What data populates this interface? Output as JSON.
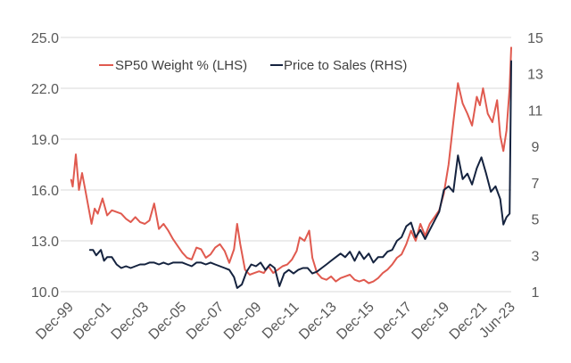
{
  "chart_data": {
    "type": "line",
    "title": "",
    "xlabel": "",
    "ylabel_left": "",
    "ylabel_right": "",
    "x_tick_labels": [
      "Dec-99",
      "Dec-01",
      "Dec-03",
      "Dec-05",
      "Dec-07",
      "Dec-09",
      "Dec-11",
      "Dec-13",
      "Dec-15",
      "Dec-17",
      "Dec-19",
      "Dec-21",
      "Jun-23"
    ],
    "x_tick_dates": [
      "1999-12",
      "2001-12",
      "2003-12",
      "2005-12",
      "2007-12",
      "2009-12",
      "2011-12",
      "2013-12",
      "2015-12",
      "2017-12",
      "2019-12",
      "2021-12",
      "2023-06"
    ],
    "xlim": [
      "1999-12",
      "2023-06"
    ],
    "y_left": {
      "ticks": [
        "10.0",
        "13.0",
        "16.0",
        "19.0",
        "22.0",
        "25.0"
      ],
      "lim": [
        10,
        25
      ]
    },
    "y_right": {
      "ticks": [
        "1",
        "3",
        "5",
        "7",
        "9",
        "11",
        "13",
        "15"
      ],
      "lim": [
        1,
        15
      ]
    },
    "grid": "horizontal",
    "legend_position": "top",
    "series": [
      {
        "name": "SP50 Weight % (LHS)",
        "axis": "left",
        "color": "#e05a4f",
        "points": [
          [
            "2000-01",
            16.6
          ],
          [
            "2000-02",
            16.2
          ],
          [
            "2000-04",
            18.1
          ],
          [
            "2000-06",
            16.0
          ],
          [
            "2000-08",
            17.0
          ],
          [
            "2000-10",
            16.0
          ],
          [
            "2000-12",
            15.0
          ],
          [
            "2001-02",
            14.0
          ],
          [
            "2001-04",
            14.9
          ],
          [
            "2001-06",
            14.6
          ],
          [
            "2001-09",
            15.5
          ],
          [
            "2001-12",
            14.5
          ],
          [
            "2002-03",
            14.8
          ],
          [
            "2002-06",
            14.7
          ],
          [
            "2002-09",
            14.6
          ],
          [
            "2002-12",
            14.3
          ],
          [
            "2003-03",
            14.1
          ],
          [
            "2003-06",
            14.4
          ],
          [
            "2003-09",
            14.1
          ],
          [
            "2003-12",
            14.0
          ],
          [
            "2004-03",
            14.2
          ],
          [
            "2004-06",
            15.2
          ],
          [
            "2004-09",
            13.7
          ],
          [
            "2004-12",
            14.0
          ],
          [
            "2005-03",
            13.6
          ],
          [
            "2005-06",
            13.1
          ],
          [
            "2005-09",
            12.7
          ],
          [
            "2005-12",
            12.3
          ],
          [
            "2006-03",
            12.0
          ],
          [
            "2006-06",
            11.9
          ],
          [
            "2006-09",
            12.6
          ],
          [
            "2006-12",
            12.5
          ],
          [
            "2007-03",
            12.0
          ],
          [
            "2007-06",
            12.2
          ],
          [
            "2007-09",
            12.6
          ],
          [
            "2007-12",
            12.8
          ],
          [
            "2008-03",
            12.4
          ],
          [
            "2008-06",
            11.7
          ],
          [
            "2008-09",
            12.5
          ],
          [
            "2008-11",
            14.0
          ],
          [
            "2009-01",
            12.8
          ],
          [
            "2009-04",
            11.3
          ],
          [
            "2009-07",
            11.0
          ],
          [
            "2009-10",
            11.1
          ],
          [
            "2010-01",
            11.2
          ],
          [
            "2010-04",
            11.1
          ],
          [
            "2010-07",
            11.5
          ],
          [
            "2010-10",
            11.1
          ],
          [
            "2011-01",
            11.3
          ],
          [
            "2011-04",
            11.5
          ],
          [
            "2011-07",
            11.6
          ],
          [
            "2011-10",
            11.9
          ],
          [
            "2012-01",
            12.4
          ],
          [
            "2012-03",
            13.2
          ],
          [
            "2012-06",
            13.0
          ],
          [
            "2012-09",
            13.6
          ],
          [
            "2012-11",
            12.0
          ],
          [
            "2013-02",
            11.1
          ],
          [
            "2013-05",
            10.8
          ],
          [
            "2013-08",
            10.7
          ],
          [
            "2013-11",
            10.9
          ],
          [
            "2014-02",
            10.6
          ],
          [
            "2014-05",
            10.8
          ],
          [
            "2014-08",
            10.9
          ],
          [
            "2014-11",
            11.0
          ],
          [
            "2015-02",
            10.7
          ],
          [
            "2015-05",
            10.6
          ],
          [
            "2015-08",
            10.7
          ],
          [
            "2015-11",
            10.5
          ],
          [
            "2016-02",
            10.6
          ],
          [
            "2016-05",
            10.8
          ],
          [
            "2016-08",
            11.1
          ],
          [
            "2016-11",
            11.3
          ],
          [
            "2017-02",
            11.6
          ],
          [
            "2017-05",
            12.0
          ],
          [
            "2017-08",
            12.2
          ],
          [
            "2017-11",
            12.8
          ],
          [
            "2018-02",
            13.6
          ],
          [
            "2018-05",
            13.0
          ],
          [
            "2018-08",
            14.0
          ],
          [
            "2018-11",
            13.3
          ],
          [
            "2019-02",
            14.0
          ],
          [
            "2019-05",
            14.4
          ],
          [
            "2019-08",
            14.8
          ],
          [
            "2019-11",
            15.8
          ],
          [
            "2020-02",
            17.5
          ],
          [
            "2020-05",
            20.0
          ],
          [
            "2020-08",
            22.3
          ],
          [
            "2020-11",
            21.1
          ],
          [
            "2021-02",
            20.5
          ],
          [
            "2021-05",
            19.8
          ],
          [
            "2021-08",
            21.5
          ],
          [
            "2021-10",
            21.0
          ],
          [
            "2021-12",
            22.0
          ],
          [
            "2022-03",
            20.5
          ],
          [
            "2022-06",
            20.0
          ],
          [
            "2022-09",
            21.3
          ],
          [
            "2022-11",
            19.2
          ],
          [
            "2023-01",
            18.3
          ],
          [
            "2023-03",
            19.5
          ],
          [
            "2023-05",
            22.0
          ],
          [
            "2023-06",
            24.4
          ]
        ]
      },
      {
        "name": "Price to Sales (RHS)",
        "axis": "right",
        "color": "#15233f",
        "points": [
          [
            "2001-01",
            3.3
          ],
          [
            "2001-03",
            3.3
          ],
          [
            "2001-05",
            3.0
          ],
          [
            "2001-08",
            3.3
          ],
          [
            "2001-10",
            2.7
          ],
          [
            "2001-12",
            2.9
          ],
          [
            "2002-03",
            2.9
          ],
          [
            "2002-06",
            2.5
          ],
          [
            "2002-09",
            2.3
          ],
          [
            "2002-12",
            2.4
          ],
          [
            "2003-03",
            2.3
          ],
          [
            "2003-06",
            2.4
          ],
          [
            "2003-09",
            2.5
          ],
          [
            "2003-12",
            2.5
          ],
          [
            "2004-03",
            2.6
          ],
          [
            "2004-06",
            2.6
          ],
          [
            "2004-09",
            2.5
          ],
          [
            "2004-12",
            2.6
          ],
          [
            "2005-03",
            2.5
          ],
          [
            "2005-06",
            2.6
          ],
          [
            "2005-09",
            2.6
          ],
          [
            "2005-12",
            2.6
          ],
          [
            "2006-03",
            2.5
          ],
          [
            "2006-06",
            2.4
          ],
          [
            "2006-09",
            2.6
          ],
          [
            "2006-12",
            2.6
          ],
          [
            "2007-03",
            2.5
          ],
          [
            "2007-06",
            2.6
          ],
          [
            "2007-09",
            2.5
          ],
          [
            "2007-12",
            2.4
          ],
          [
            "2008-03",
            2.3
          ],
          [
            "2008-06",
            2.2
          ],
          [
            "2008-09",
            1.8
          ],
          [
            "2008-11",
            1.2
          ],
          [
            "2009-02",
            1.4
          ],
          [
            "2009-05",
            2.1
          ],
          [
            "2009-08",
            2.5
          ],
          [
            "2009-11",
            2.4
          ],
          [
            "2010-02",
            2.6
          ],
          [
            "2010-05",
            2.2
          ],
          [
            "2010-08",
            2.5
          ],
          [
            "2010-11",
            2.3
          ],
          [
            "2011-02",
            1.3
          ],
          [
            "2011-05",
            2.0
          ],
          [
            "2011-08",
            2.2
          ],
          [
            "2011-11",
            2.0
          ],
          [
            "2012-02",
            2.2
          ],
          [
            "2012-05",
            2.3
          ],
          [
            "2012-08",
            2.3
          ],
          [
            "2012-11",
            2.0
          ],
          [
            "2013-02",
            2.1
          ],
          [
            "2013-05",
            2.3
          ],
          [
            "2013-08",
            2.5
          ],
          [
            "2013-11",
            2.7
          ],
          [
            "2014-02",
            2.9
          ],
          [
            "2014-05",
            3.1
          ],
          [
            "2014-08",
            2.9
          ],
          [
            "2014-11",
            3.2
          ],
          [
            "2015-02",
            2.7
          ],
          [
            "2015-05",
            3.2
          ],
          [
            "2015-08",
            2.8
          ],
          [
            "2015-11",
            3.1
          ],
          [
            "2016-02",
            2.6
          ],
          [
            "2016-05",
            2.9
          ],
          [
            "2016-08",
            2.9
          ],
          [
            "2016-11",
            3.2
          ],
          [
            "2017-02",
            3.3
          ],
          [
            "2017-05",
            3.8
          ],
          [
            "2017-08",
            4.0
          ],
          [
            "2017-11",
            4.6
          ],
          [
            "2018-02",
            4.8
          ],
          [
            "2018-05",
            4.0
          ],
          [
            "2018-08",
            4.4
          ],
          [
            "2018-11",
            3.9
          ],
          [
            "2019-02",
            4.4
          ],
          [
            "2019-05",
            4.9
          ],
          [
            "2019-08",
            5.4
          ],
          [
            "2019-11",
            6.6
          ],
          [
            "2020-02",
            6.8
          ],
          [
            "2020-05",
            6.5
          ],
          [
            "2020-08",
            8.5
          ],
          [
            "2020-11",
            7.2
          ],
          [
            "2021-02",
            7.5
          ],
          [
            "2021-05",
            6.9
          ],
          [
            "2021-08",
            7.8
          ],
          [
            "2021-11",
            8.4
          ],
          [
            "2022-02",
            7.5
          ],
          [
            "2022-05",
            6.5
          ],
          [
            "2022-08",
            6.8
          ],
          [
            "2022-11",
            6.1
          ],
          [
            "2023-01",
            4.7
          ],
          [
            "2023-03",
            5.1
          ],
          [
            "2023-05",
            5.3
          ],
          [
            "2023-06",
            13.7
          ]
        ]
      }
    ]
  }
}
